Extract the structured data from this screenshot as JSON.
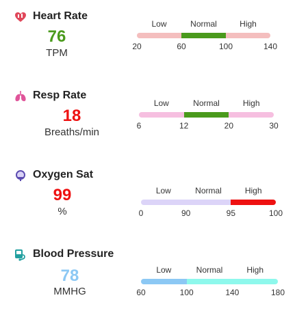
{
  "vitals": [
    {
      "title": "Heart Rate",
      "icon": "heart-icon",
      "icon_color": "#e0475a",
      "value": "76",
      "value_color": "#4a9a1c",
      "unit": "TPM",
      "zones": [
        "Low",
        "Normal",
        "High"
      ],
      "ticks": [
        "20",
        "60",
        "100",
        "140"
      ],
      "tick_values": [
        20,
        60,
        100,
        140
      ],
      "marker_value": 76,
      "segment_colors": [
        "#f4bebe",
        "#4a9a1c",
        "#f4bebe"
      ],
      "marker_color": "#4a9a1c"
    },
    {
      "title": "Resp Rate",
      "icon": "lungs-icon",
      "icon_color": "#e0559a",
      "value": "18",
      "value_color": "#ee1111",
      "unit": "Breaths/min",
      "zones": [
        "Low",
        "Normal",
        "High"
      ],
      "ticks": [
        "6",
        "12",
        "20",
        "30"
      ],
      "tick_values": [
        6,
        12,
        20,
        30
      ],
      "marker_value": 18,
      "segment_colors": [
        "#f6bfe0",
        "#4a9a1c",
        "#f6bfe0"
      ],
      "marker_color": "#4a9a1c"
    },
    {
      "title": "Oxygen Sat",
      "icon": "oxygen-mask-icon",
      "icon_color": "#5b4bb0",
      "value": "99",
      "value_color": "#ee1111",
      "unit": "%",
      "zones": [
        "Low",
        "Normal",
        "High"
      ],
      "ticks": [
        "0",
        "90",
        "95",
        "100"
      ],
      "tick_values": [
        0,
        90,
        95,
        100
      ],
      "marker_value": 99,
      "segment_colors": [
        "#dcd4f8",
        "#dcd4f8",
        "#ee1111"
      ],
      "marker_color": "#ee1111"
    },
    {
      "title": "Blood Pressure",
      "icon": "blood-pressure-icon",
      "icon_color": "#22a0a0",
      "value": "78",
      "value_color": "#8cc8f4",
      "unit": "MMHG",
      "zones": [
        "Low",
        "Normal",
        "High"
      ],
      "ticks": [
        "60",
        "100",
        "140",
        "180"
      ],
      "tick_values": [
        60,
        100,
        140,
        180
      ],
      "marker_value": 78,
      "segment_colors": [
        "#8cc8f4",
        "#8ef8ec",
        "#8ef8ec"
      ],
      "marker_color": "#8cc8f4"
    }
  ]
}
